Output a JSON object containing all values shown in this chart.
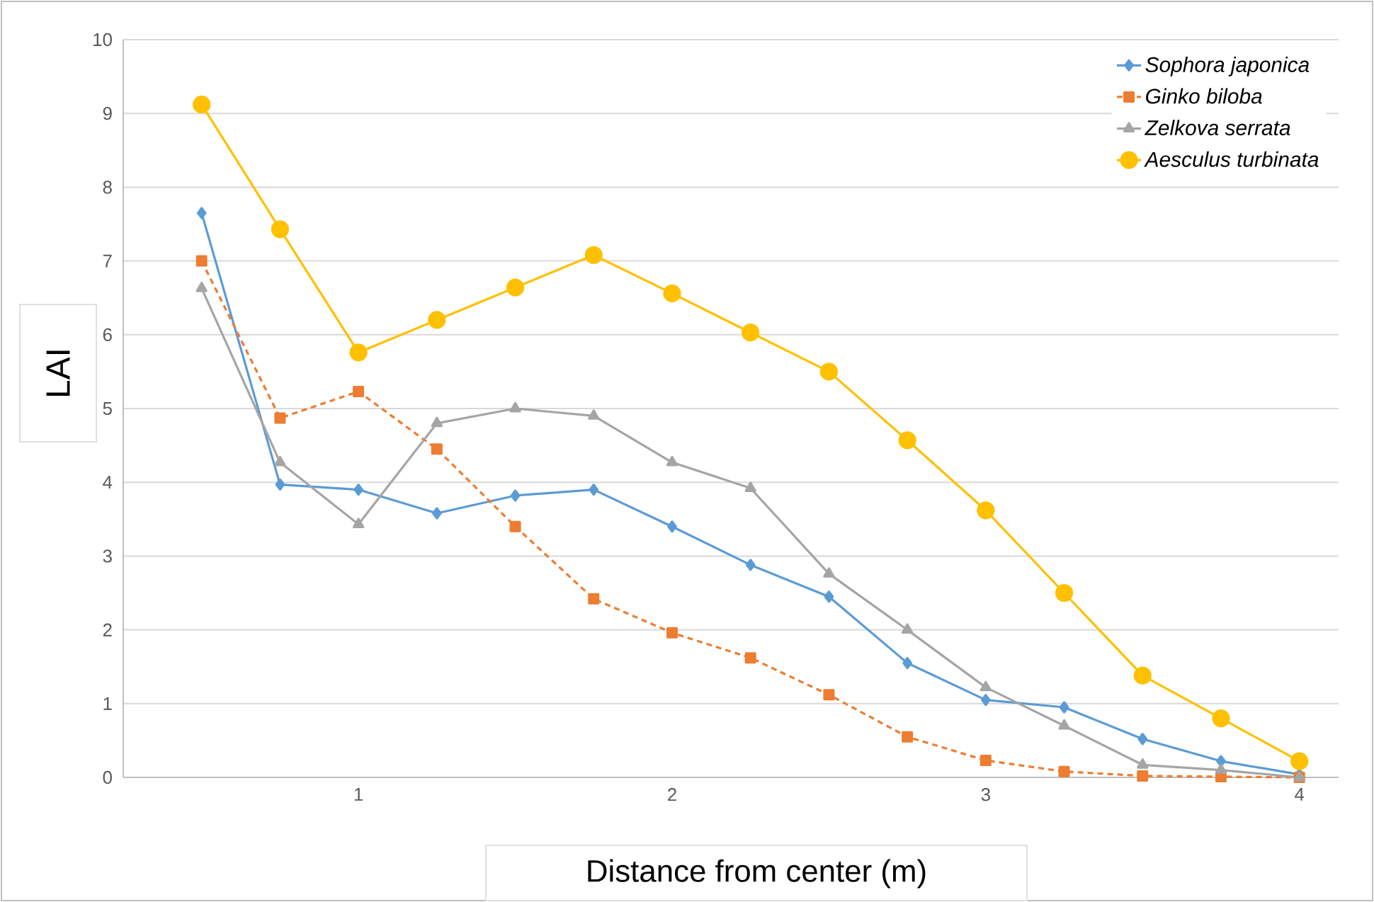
{
  "chart_data": {
    "type": "line",
    "xlabel": "Distance from center (m)",
    "ylabel": "LAI",
    "x": [
      0.5,
      0.75,
      1,
      1.25,
      1.5,
      1.75,
      2,
      2.25,
      2.5,
      2.75,
      3,
      3.25,
      3.5,
      3.75,
      4
    ],
    "xlim": [
      0.25,
      4.125
    ],
    "xticks": [
      1,
      2,
      3,
      4
    ],
    "ylim": [
      0,
      10
    ],
    "yticks": [
      0,
      1,
      2,
      3,
      4,
      5,
      6,
      7,
      8,
      9,
      10
    ],
    "grid": "y",
    "legend": "top right",
    "series": [
      {
        "name": "Sophora japonica",
        "color": "#5b9bd5",
        "marker": "diamond",
        "line_style": "solid",
        "values": [
          7.65,
          3.97,
          3.9,
          3.58,
          3.82,
          3.9,
          3.4,
          2.88,
          2.45,
          1.55,
          1.05,
          0.95,
          0.52,
          0.22,
          0.04
        ]
      },
      {
        "name": "Ginko biloba",
        "color": "#ed7d31",
        "marker": "square",
        "line_style": "dashed",
        "values": [
          7.0,
          4.87,
          5.23,
          4.45,
          3.4,
          2.42,
          1.96,
          1.62,
          1.12,
          0.55,
          0.23,
          0.08,
          0.02,
          0.01,
          0.0
        ]
      },
      {
        "name": "Zelkova serrata",
        "color": "#a5a5a5",
        "marker": "triangle",
        "line_style": "solid",
        "values": [
          6.63,
          4.27,
          3.43,
          4.8,
          5.0,
          4.9,
          4.27,
          3.92,
          2.76,
          2.0,
          1.22,
          0.7,
          0.17,
          0.1,
          0.0
        ]
      },
      {
        "name": "Aesculus turbinata",
        "color": "#ffc000",
        "marker": "circle",
        "line_style": "solid",
        "values": [
          9.12,
          7.43,
          5.76,
          6.2,
          6.64,
          7.08,
          6.56,
          6.03,
          5.5,
          4.57,
          3.62,
          2.5,
          1.38,
          0.8,
          0.22
        ]
      }
    ]
  }
}
